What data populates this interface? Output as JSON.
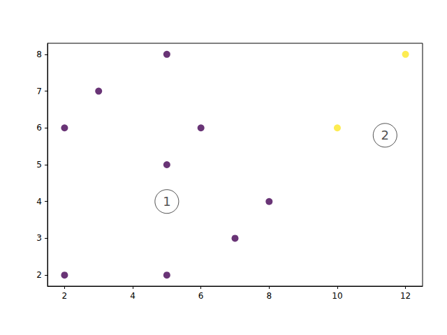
{
  "chart_data": {
    "type": "scatter",
    "x": [
      2,
      3,
      5,
      6,
      5,
      8,
      7,
      5,
      2,
      10,
      12
    ],
    "values": [
      6,
      7,
      8,
      6,
      5,
      4,
      3,
      2,
      2,
      6,
      8
    ],
    "colors": [
      "#440154",
      "#440154",
      "#440154",
      "#440154",
      "#440154",
      "#440154",
      "#440154",
      "#440154",
      "#440154",
      "#fde725",
      "#fde725"
    ],
    "xlim": [
      1.5,
      12.5
    ],
    "xticks": [
      2,
      4,
      6,
      8,
      10,
      12
    ],
    "ylim": [
      1.7,
      8.3
    ],
    "yticks": [
      2,
      3,
      4,
      5,
      6,
      7,
      8
    ],
    "grid": false,
    "annotations": [
      {
        "text": "1",
        "x": 5,
        "y": 4
      },
      {
        "text": "2",
        "x": 11.4,
        "y": 5.8
      }
    ]
  }
}
